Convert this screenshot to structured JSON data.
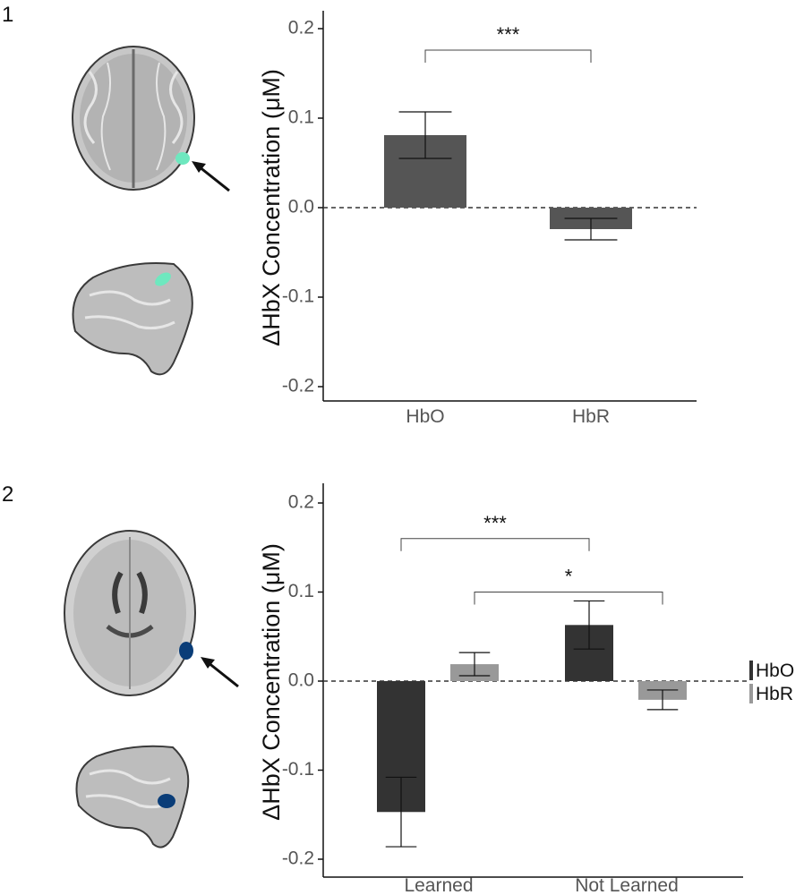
{
  "panels": [
    {
      "label": "1"
    },
    {
      "label": "2"
    }
  ],
  "colors": {
    "hbo_panel1": "#555555",
    "hbo": "#333333",
    "hbr": "#999999",
    "roi_panel1": "#6ee8bf",
    "roi_panel2": "#0a3d78"
  },
  "chart_data": [
    {
      "type": "bar",
      "categories": [
        "HbO",
        "HbR"
      ],
      "values": [
        0.081,
        -0.024
      ],
      "errors": [
        0.026,
        0.012
      ],
      "ylabel": "ΔHbX Concentration (μM)",
      "ylim": [
        -0.2,
        0.2
      ],
      "yticks": [
        "0.2",
        "0.1",
        "0.0",
        "-0.1",
        "-0.2"
      ],
      "yticks_values": [
        0.2,
        0.1,
        0.0,
        -0.1,
        -0.2
      ],
      "reference_line": 0.0,
      "significance": [
        {
          "from": "HbO",
          "to": "HbR",
          "label": "***",
          "level": 0.176
        }
      ]
    },
    {
      "type": "bar",
      "categories": [
        "Learned",
        "Not Learned"
      ],
      "series": [
        {
          "name": "HbO",
          "values": [
            -0.147,
            0.063
          ],
          "errors": [
            0.039,
            0.027
          ]
        },
        {
          "name": "HbR",
          "values": [
            0.019,
            -0.021
          ],
          "errors": [
            0.013,
            0.011
          ]
        }
      ],
      "ylabel": "ΔHbX Concentration (μM)",
      "ylim": [
        -0.2,
        0.2
      ],
      "yticks": [
        "0.2",
        "0.1",
        "0.0",
        "-0.1",
        "-0.2"
      ],
      "yticks_values": [
        0.2,
        0.1,
        0.0,
        -0.1,
        -0.2
      ],
      "reference_line": 0.0,
      "legend": "right",
      "significance": [
        {
          "from": "Learned HbO",
          "to": "Not Learned HbO",
          "label": "***",
          "level": 0.16
        },
        {
          "from": "Learned HbR",
          "to": "Not Learned HbR",
          "label": "*",
          "level": 0.1
        }
      ]
    }
  ]
}
